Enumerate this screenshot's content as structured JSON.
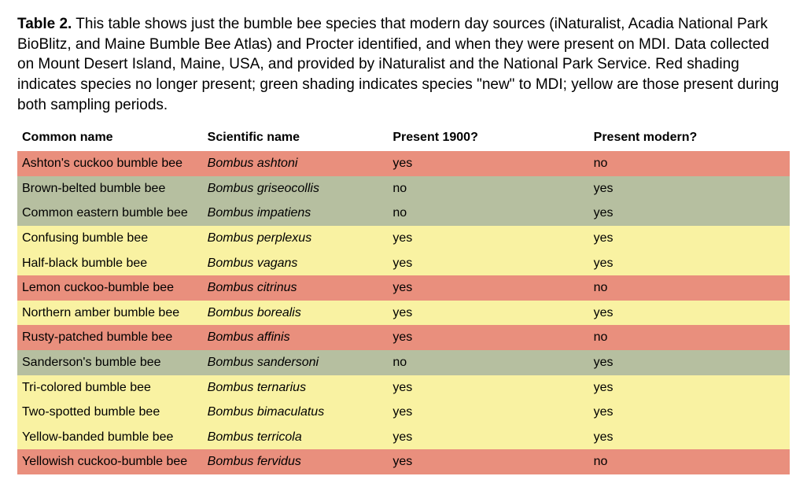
{
  "caption": {
    "label": "Table 2.",
    "text": "This table shows just the bumble bee species that modern day sources (iNaturalist, Acadia National Park BioBlitz, and Maine Bumble Bee Atlas) and Procter identified, and when they were present on MDI. Data collected on Mount Desert Island, Maine, USA, and provided by iNaturalist and the National Park Service. Red shading indicates species no longer present; green shading indicates species \"new\" to MDI; yellow are those present during both sampling periods."
  },
  "table": {
    "headers": {
      "common": "Common name",
      "scientific": "Scientific name",
      "p1900": "Present 1900?",
      "pmod": "Present modern?"
    },
    "status_colors": {
      "red": "#e98f7d",
      "green": "#b6bfa0",
      "yellow": "#f9f2a2"
    },
    "rows": [
      {
        "common": "Ashton's cuckoo bumble bee",
        "scientific": "Bombus ashtoni",
        "p1900": "yes",
        "pmod": "no",
        "status": "red"
      },
      {
        "common": "Brown-belted bumble bee",
        "scientific": "Bombus griseocollis",
        "p1900": "no",
        "pmod": "yes",
        "status": "green"
      },
      {
        "common": "Common eastern bumble bee",
        "scientific": "Bombus impatiens",
        "p1900": "no",
        "pmod": "yes",
        "status": "green"
      },
      {
        "common": "Confusing bumble bee",
        "scientific": "Bombus perplexus",
        "p1900": "yes",
        "pmod": "yes",
        "status": "yellow"
      },
      {
        "common": "Half-black bumble bee",
        "scientific": "Bombus vagans",
        "p1900": "yes",
        "pmod": "yes",
        "status": "yellow"
      },
      {
        "common": "Lemon cuckoo-bumble bee",
        "scientific": "Bombus citrinus",
        "p1900": "yes",
        "pmod": "no",
        "status": "red"
      },
      {
        "common": "Northern amber bumble bee",
        "scientific": "Bombus borealis",
        "p1900": "yes",
        "pmod": "yes",
        "status": "yellow"
      },
      {
        "common": "Rusty-patched bumble bee",
        "scientific": "Bombus affinis",
        "p1900": "yes",
        "pmod": "no",
        "status": "red"
      },
      {
        "common": "Sanderson's bumble bee",
        "scientific": "Bombus sandersoni",
        "p1900": "no",
        "pmod": "yes",
        "status": "green"
      },
      {
        "common": "Tri-colored bumble bee",
        "scientific": "Bombus ternarius",
        "p1900": "yes",
        "pmod": "yes",
        "status": "yellow"
      },
      {
        "common": "Two-spotted bumble bee",
        "scientific": "Bombus bimaculatus",
        "p1900": "yes",
        "pmod": "yes",
        "status": "yellow"
      },
      {
        "common": "Yellow-banded bumble bee",
        "scientific": "Bombus terricola",
        "p1900": "yes",
        "pmod": "yes",
        "status": "yellow"
      },
      {
        "common": "Yellowish cuckoo-bumble bee",
        "scientific": "Bombus fervidus",
        "p1900": "yes",
        "pmod": "no",
        "status": "red"
      }
    ]
  }
}
